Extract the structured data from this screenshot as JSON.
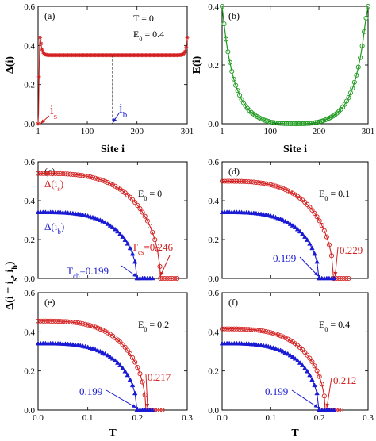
{
  "colors": {
    "red": "#d42020",
    "blue": "#1a1ad4",
    "green": "#1e9a1e",
    "axis": "#000000"
  },
  "chart_data": [
    {
      "id": "a",
      "type": "line",
      "panel_label": "(a)",
      "ylabel": "Δ(i)",
      "xlabel": "",
      "xlim": [
        1,
        301
      ],
      "ylim": [
        0,
        0.6
      ],
      "xticks": [
        1,
        100,
        200,
        301
      ],
      "xtick_labels": [
        "1",
        "100",
        "200",
        "301"
      ],
      "yticks": [
        0,
        0.2,
        0.4,
        0.6
      ],
      "ytick_labels": [
        "0.0",
        "0.2",
        "0.4",
        "0.6"
      ],
      "texts": [
        "T = 0",
        "E",
        "0",
        " = 0.4"
      ],
      "series": [
        {
          "color": "red",
          "marker": "star",
          "bulk_value": 0.35,
          "points": [
            [
              1,
              0.0
            ],
            [
              2,
              0.05
            ],
            [
              3,
              0.24
            ],
            [
              4,
              0.41
            ],
            [
              5,
              0.44
            ],
            [
              6,
              0.43
            ],
            [
              7,
              0.41
            ],
            [
              8,
              0.39
            ],
            [
              9,
              0.38
            ],
            [
              10,
              0.37
            ],
            [
              12,
              0.362
            ],
            [
              14,
              0.356
            ],
            [
              17,
              0.352
            ],
            [
              20,
              0.351
            ],
            [
              25,
              0.35
            ],
            [
              282,
              0.35
            ],
            [
              287,
              0.351
            ],
            [
              290,
              0.352
            ],
            [
              293,
              0.356
            ],
            [
              295,
              0.362
            ],
            [
              297,
              0.37
            ],
            [
              298,
              0.38
            ],
            [
              299,
              0.39
            ],
            [
              300,
              0.41
            ],
            [
              301,
              0.44
            ]
          ]
        }
      ],
      "annotations": [
        {
          "label": "i",
          "sub": "s",
          "color": "red",
          "x": 3
        },
        {
          "label": "i",
          "sub": "b",
          "color": "blue",
          "x": 151
        }
      ],
      "vline_x": 151
    },
    {
      "id": "b",
      "type": "line",
      "panel_label": "(b)",
      "ylabel": "E(i)",
      "xlabel": "Site i",
      "xlim": [
        1,
        301
      ],
      "ylim": [
        0,
        0.4
      ],
      "xticks": [
        1,
        100,
        200,
        301
      ],
      "xtick_labels": [
        "1",
        "100",
        "200",
        "301"
      ],
      "yticks": [
        0,
        0.2,
        0.4
      ],
      "ytick_labels": [
        "0.0",
        "0.2",
        "0.4"
      ],
      "series": [
        {
          "color": "green",
          "marker": "circle",
          "points": [
            [
              1,
              0.4
            ],
            [
              5,
              0.34
            ],
            [
              10,
              0.275
            ],
            [
              15,
              0.225
            ],
            [
              20,
              0.185
            ],
            [
              25,
              0.152
            ],
            [
              30,
              0.125
            ],
            [
              40,
              0.085
            ],
            [
              50,
              0.058
            ],
            [
              60,
              0.04
            ],
            [
              70,
              0.027
            ],
            [
              80,
              0.018
            ],
            [
              90,
              0.011
            ],
            [
              100,
              0.006
            ],
            [
              115,
              0.002
            ],
            [
              130,
              0.0005
            ],
            [
              150,
              0.0
            ],
            [
              170,
              0.0005
            ],
            [
              185,
              0.002
            ],
            [
              200,
              0.006
            ],
            [
              210,
              0.011
            ],
            [
              220,
              0.018
            ],
            [
              230,
              0.027
            ],
            [
              240,
              0.04
            ],
            [
              250,
              0.058
            ],
            [
              260,
              0.085
            ],
            [
              270,
              0.125
            ],
            [
              275,
              0.152
            ],
            [
              280,
              0.185
            ],
            [
              285,
              0.225
            ],
            [
              290,
              0.275
            ],
            [
              295,
              0.34
            ],
            [
              301,
              0.4
            ]
          ]
        }
      ]
    },
    {
      "id": "c",
      "type": "line",
      "panel_label": "(c)",
      "ylabel": "Δ(i = i",
      "xlabel": "",
      "xlim": [
        0,
        0.3
      ],
      "ylim": [
        0,
        0.6
      ],
      "xticks": [
        0,
        0.1,
        0.2,
        0.3
      ],
      "xtick_labels": [],
      "yticks": [
        0,
        0.2,
        0.4,
        0.6
      ],
      "ytick_labels": [
        "0.0",
        "0.2",
        "0.4",
        "0.6"
      ],
      "e0": "0",
      "series": [
        {
          "name": "Δ(i",
          "sub": "s",
          "color": "red",
          "marker": "circle",
          "delta0": 0.54,
          "tc": 0.246
        },
        {
          "name": "Δ(i",
          "sub": "b",
          "color": "blue",
          "marker": "triangle",
          "delta0": 0.34,
          "tc": 0.199
        }
      ],
      "tc_labels": [
        {
          "color": "red",
          "text": "T",
          "sub": "cs",
          "value": "=0.246"
        },
        {
          "color": "blue",
          "text": "T",
          "sub": "cb",
          "value": "=0.199"
        }
      ]
    },
    {
      "id": "d",
      "type": "line",
      "panel_label": "(d)",
      "ylabel": "",
      "xlabel": "",
      "xlim": [
        0,
        0.3
      ],
      "ylim": [
        0,
        0.6
      ],
      "xticks": [
        0,
        0.1,
        0.2,
        0.3
      ],
      "xtick_labels": [],
      "yticks": [
        0,
        0.2,
        0.4,
        0.6
      ],
      "ytick_labels": [
        "0.0",
        "0.2",
        "0.4",
        "0.6"
      ],
      "e0": "0.1",
      "series": [
        {
          "color": "red",
          "marker": "circle",
          "delta0": 0.5,
          "tc": 0.229
        },
        {
          "color": "blue",
          "marker": "triangle",
          "delta0": 0.34,
          "tc": 0.199
        }
      ],
      "tc_values": [
        {
          "color": "red",
          "value": "0.229"
        },
        {
          "color": "blue",
          "value": "0.199"
        }
      ]
    },
    {
      "id": "e",
      "type": "line",
      "panel_label": "(e)",
      "ylabel": "",
      "xlabel": "T",
      "xlim": [
        0,
        0.3
      ],
      "ylim": [
        0,
        0.6
      ],
      "xticks": [
        0,
        0.1,
        0.2,
        0.3
      ],
      "xtick_labels": [
        "0.0",
        "0.1",
        "0.2",
        "0.3"
      ],
      "yticks": [
        0,
        0.2,
        0.4,
        0.6
      ],
      "ytick_labels": [
        "0.0",
        "0.2",
        "0.4",
        "0.6"
      ],
      "e0": "0.2",
      "series": [
        {
          "color": "red",
          "marker": "circle",
          "delta0": 0.455,
          "tc": 0.217
        },
        {
          "color": "blue",
          "marker": "triangle",
          "delta0": 0.34,
          "tc": 0.199
        }
      ],
      "tc_values": [
        {
          "color": "red",
          "value": "0.217"
        },
        {
          "color": "blue",
          "value": "0.199"
        }
      ]
    },
    {
      "id": "f",
      "type": "line",
      "panel_label": "(f)",
      "ylabel": "",
      "xlabel": "T",
      "xlim": [
        0,
        0.3
      ],
      "ylim": [
        0,
        0.6
      ],
      "xticks": [
        0,
        0.1,
        0.2,
        0.3
      ],
      "xtick_labels": [
        "0.0",
        "0.1",
        "0.2",
        "0.3"
      ],
      "yticks": [
        0,
        0.2,
        0.4,
        0.6
      ],
      "ytick_labels": [
        "0.0",
        "0.2",
        "0.4",
        "0.6"
      ],
      "e0": "0.4",
      "series": [
        {
          "color": "red",
          "marker": "circle",
          "delta0": 0.415,
          "tc": 0.212
        },
        {
          "color": "blue",
          "marker": "triangle",
          "delta0": 0.34,
          "tc": 0.199
        }
      ],
      "tc_values": [
        {
          "color": "red",
          "value": "0.212"
        },
        {
          "color": "blue",
          "value": "0.199"
        }
      ]
    }
  ],
  "ylabel_shared_sub": "s",
  "ylabel_shared_tail": ", i",
  "ylabel_shared_sub2": "b",
  "ylabel_shared_end": ")",
  "e_label": "E",
  "e_sub": "0",
  "e_eq": " = "
}
